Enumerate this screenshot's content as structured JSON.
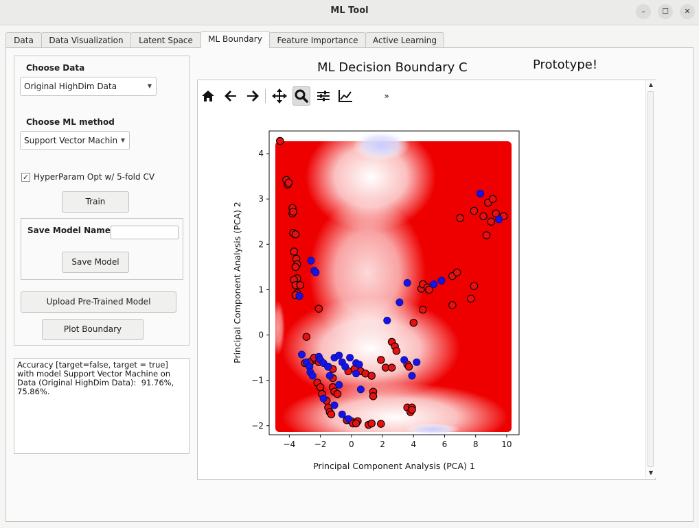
{
  "window": {
    "title": "ML Tool",
    "min_glyph": "–",
    "max_glyph": "☐",
    "close_glyph": "✕"
  },
  "tabs": [
    "Data",
    "Data Visualization",
    "Latent Space",
    "ML Boundary",
    "Feature Importance",
    "Active Learning"
  ],
  "active_tab": "ML Boundary",
  "left_panel": {
    "choose_data_label": "Choose Data",
    "data_select_value": "Original HighDim Data",
    "choose_method_label": "Choose ML method",
    "method_select_value": "Support Vector Machin",
    "hyperparam_checked": true,
    "hyperparam_label": "HyperParam Opt w/ 5-fold CV",
    "train_label": "Train",
    "save_model_name_label": "Save Model Name",
    "save_model_name_value": "",
    "save_model_label": "Save Model",
    "upload_label": "Upload Pre-Trained Model",
    "plot_boundary_label": "Plot Boundary"
  },
  "output_text": "Accuracy [target=false, target = true]\nwith model Support Vector Machine on\nData (Original HighDim Data):  91.76%,\n75.86%.",
  "figure": {
    "title_left": "ML Decision Boundary C",
    "title_right": "Prototype!",
    "toolbar_icons": [
      "home-icon",
      "back-arrow-icon",
      "forward-arrow-icon",
      "pan-icon",
      "zoom-icon",
      "configure-subplots-icon",
      "edit-axis-icon",
      "more-icon"
    ]
  },
  "chart_data": {
    "type": "scatter",
    "title": "",
    "xlabel": "Principal Component Analysis (PCA) 1",
    "ylabel": "Principal Component Analysis (PCA) 2",
    "xlim": [
      -5.3,
      10.8
    ],
    "ylim": [
      -2.2,
      4.5
    ],
    "xticks": [
      -4,
      -2,
      0,
      2,
      4,
      6,
      8,
      10
    ],
    "yticks": [
      -2,
      -1,
      0,
      1,
      2,
      3,
      4
    ],
    "background": "decision boundary field: mostly red (target=false), white transition region, light-blue patches top-center and near bottom",
    "colors": {
      "class_false": "#e81010",
      "class_true": "#1414e6",
      "edge": "#000000",
      "field_red": "#ee0000",
      "field_blue": "#c6ccff"
    },
    "series": [
      {
        "color": "red",
        "points": [
          [
            -4.6,
            4.28
          ],
          [
            -4.2,
            3.42
          ],
          [
            -4.1,
            3.32
          ],
          [
            -4.05,
            3.36
          ],
          [
            -3.8,
            2.8
          ],
          [
            -3.8,
            2.68
          ],
          [
            -3.75,
            2.72
          ],
          [
            -3.75,
            2.25
          ],
          [
            -3.6,
            2.22
          ],
          [
            -3.7,
            1.84
          ],
          [
            -3.55,
            1.68
          ],
          [
            -3.5,
            1.56
          ],
          [
            -3.6,
            1.5
          ],
          [
            -3.5,
            1.25
          ],
          [
            -3.7,
            1.22
          ],
          [
            -3.6,
            1.1
          ],
          [
            -3.3,
            1.1
          ],
          [
            -3.5,
            0.92
          ],
          [
            -3.6,
            0.88
          ],
          [
            -2.1,
            0.58
          ],
          [
            -2.9,
            -0.04
          ],
          [
            -3.0,
            -0.62
          ],
          [
            -2.6,
            -0.58
          ],
          [
            -2.3,
            -0.55
          ],
          [
            -2.4,
            -0.5
          ],
          [
            -2.1,
            -0.6
          ],
          [
            -1.5,
            -0.7
          ],
          [
            -1.2,
            -0.75
          ],
          [
            -0.2,
            -0.8
          ],
          [
            0.2,
            -0.75
          ],
          [
            0.6,
            -0.8
          ],
          [
            0.9,
            -0.85
          ],
          [
            1.3,
            -0.9
          ],
          [
            -2.2,
            -1.05
          ],
          [
            -2.0,
            -1.15
          ],
          [
            -1.9,
            -1.3
          ],
          [
            -1.2,
            -0.95
          ],
          [
            -1.2,
            -1.15
          ],
          [
            -1.1,
            -1.25
          ],
          [
            -0.9,
            -1.3
          ],
          [
            -1.6,
            -1.45
          ],
          [
            -1.5,
            -1.6
          ],
          [
            -1.4,
            -1.7
          ],
          [
            -1.3,
            -1.75
          ],
          [
            -0.3,
            -1.88
          ],
          [
            0,
            -1.9
          ],
          [
            0.1,
            -1.95
          ],
          [
            0.4,
            -1.9
          ],
          [
            0.3,
            -1.95
          ],
          [
            1.1,
            -1.98
          ],
          [
            1.3,
            -1.95
          ],
          [
            1.9,
            -1.96
          ],
          [
            1.4,
            -1.25
          ],
          [
            1.4,
            -1.35
          ],
          [
            1.9,
            -0.55
          ],
          [
            2.2,
            -0.72
          ],
          [
            2.6,
            -0.72
          ],
          [
            2.6,
            -0.15
          ],
          [
            2.8,
            -0.25
          ],
          [
            2.9,
            -0.35
          ],
          [
            3.6,
            -0.65
          ],
          [
            3.7,
            -0.7
          ],
          [
            3.6,
            -1.6
          ],
          [
            3.9,
            -1.6
          ],
          [
            3.8,
            -1.7
          ],
          [
            3.9,
            -1.65
          ],
          [
            4.5,
            1.02
          ],
          [
            4.6,
            1.12
          ],
          [
            4.9,
            1.05
          ],
          [
            5.0,
            1.0
          ],
          [
            4.6,
            0.56
          ],
          [
            4.0,
            0.27
          ],
          [
            6.5,
            1.3
          ],
          [
            6.8,
            1.38
          ],
          [
            7.0,
            2.58
          ],
          [
            7.9,
            2.74
          ],
          [
            8.5,
            2.62
          ],
          [
            8.8,
            2.92
          ],
          [
            9.1,
            3.0
          ],
          [
            9.3,
            2.68
          ],
          [
            9.0,
            2.5
          ],
          [
            9.8,
            2.62
          ],
          [
            8.7,
            2.2
          ],
          [
            7.7,
            0.8
          ],
          [
            7.9,
            1.08
          ],
          [
            6.5,
            0.66
          ]
        ]
      },
      {
        "color": "blue",
        "points": [
          [
            -2.6,
            1.64
          ],
          [
            -2.4,
            1.42
          ],
          [
            -2.3,
            1.38
          ],
          [
            -3.35,
            0.86
          ],
          [
            -3.2,
            -0.43
          ],
          [
            -2.9,
            -0.6
          ],
          [
            -2.7,
            -0.7
          ],
          [
            -2.65,
            -0.82
          ],
          [
            -2.5,
            -0.9
          ],
          [
            -2.1,
            -0.48
          ],
          [
            -2.0,
            -0.55
          ],
          [
            -1.8,
            -0.62
          ],
          [
            -1.5,
            -0.7
          ],
          [
            -1.4,
            -0.9
          ],
          [
            -1.1,
            -0.5
          ],
          [
            -0.8,
            -0.45
          ],
          [
            -0.6,
            -0.6
          ],
          [
            -0.4,
            -0.7
          ],
          [
            -0.1,
            -0.5
          ],
          [
            0.3,
            -0.62
          ],
          [
            0.5,
            -0.65
          ],
          [
            0.3,
            -0.85
          ],
          [
            -1.8,
            -1.4
          ],
          [
            -1.1,
            -1.55
          ],
          [
            -0.8,
            -1.1
          ],
          [
            -0.6,
            -1.75
          ],
          [
            -0.2,
            -1.85
          ],
          [
            0.6,
            -1.2
          ],
          [
            2.3,
            0.32
          ],
          [
            3.1,
            0.72
          ],
          [
            3.6,
            1.15
          ],
          [
            5.3,
            1.12
          ],
          [
            5.8,
            1.2
          ],
          [
            3.4,
            -0.55
          ],
          [
            4.2,
            -0.6
          ],
          [
            3.9,
            -0.9
          ],
          [
            8.3,
            3.12
          ],
          [
            9.5,
            2.55
          ]
        ]
      }
    ]
  }
}
